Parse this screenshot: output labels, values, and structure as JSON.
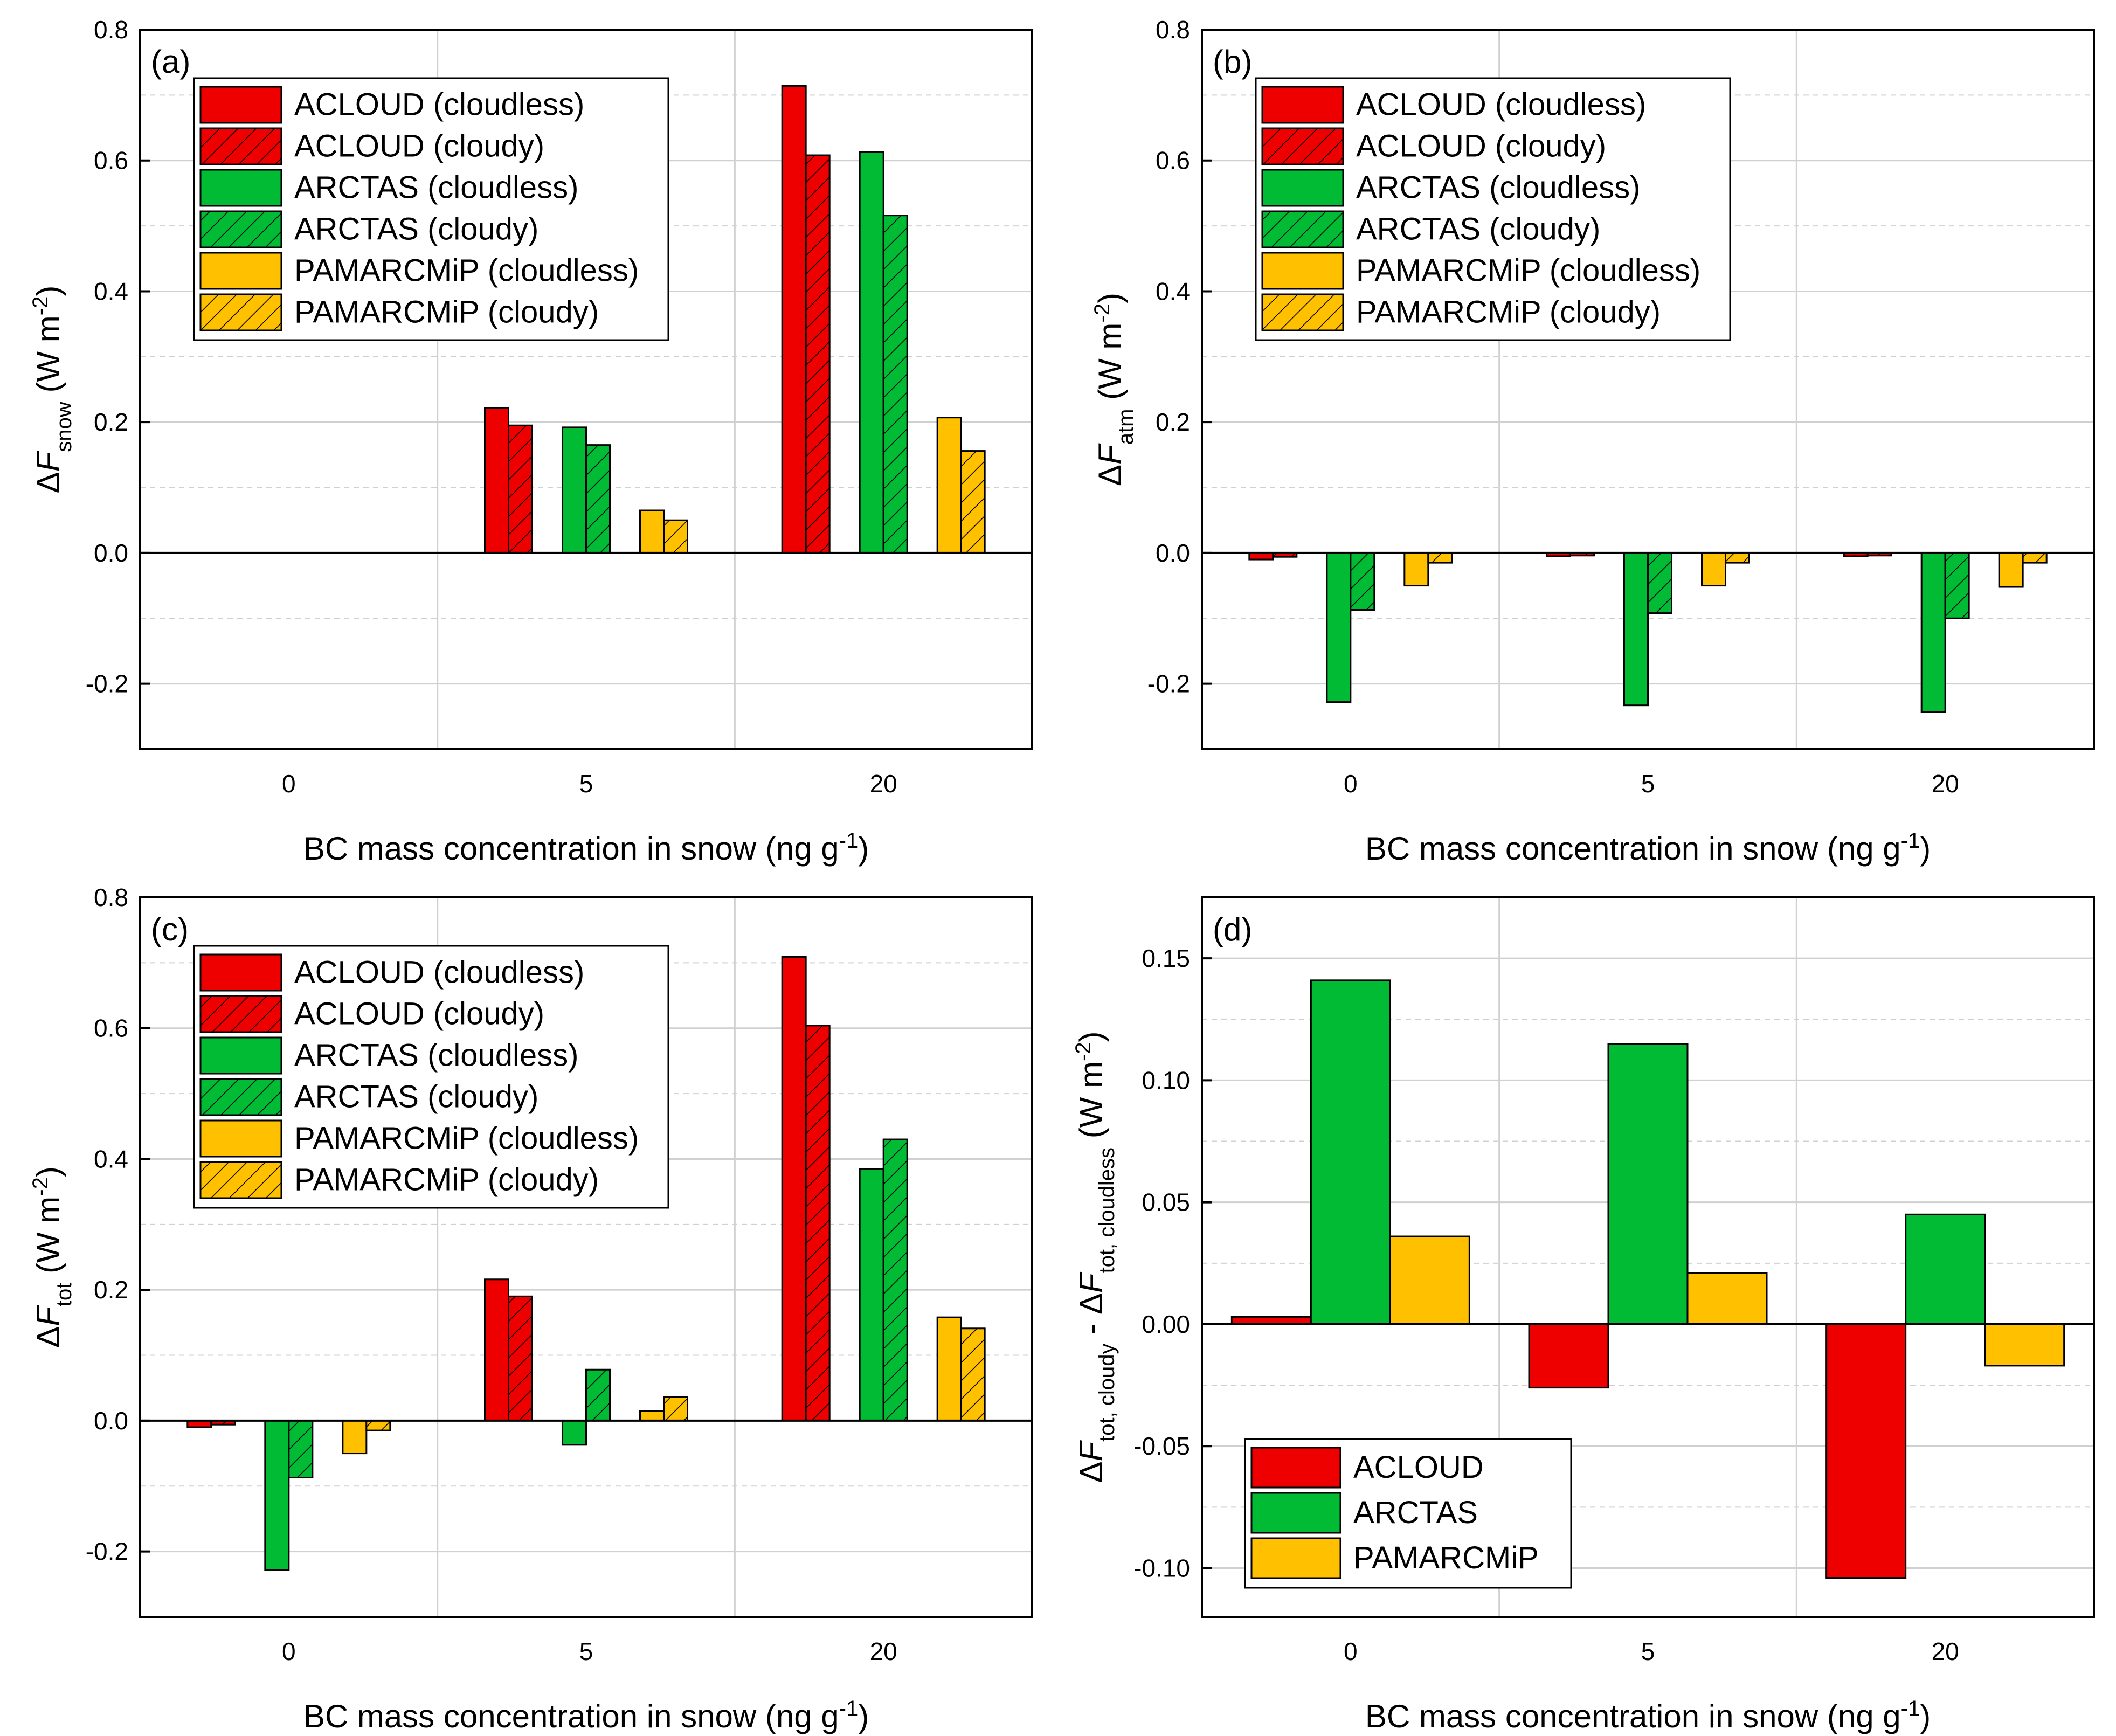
{
  "colors": {
    "ACLOUD": "#ee0000",
    "ARCTAS": "#00bb33",
    "PAMARCMiP": "#ffc000",
    "grid": "#d0d0d0",
    "frame": "#000000"
  },
  "chart_data": [
    {
      "panel": "(a)",
      "type": "bar",
      "categories": [
        "0",
        "5",
        "20"
      ],
      "xlabel": "BC mass concentration in snow (ng g",
      "xlabel_sup": "-1",
      "xlabel_end": ")",
      "ylabel_parts": [
        "ΔF",
        "snow",
        " (W m",
        "-2",
        ")"
      ],
      "ylim": [
        -0.3,
        0.8
      ],
      "yticks": [
        "-0.2",
        "0.0",
        "0.2",
        "0.4",
        "0.6",
        "0.8"
      ],
      "grid": true,
      "legend_position": "top-left",
      "series": [
        {
          "name": "ACLOUD (cloudless)",
          "group": "ACLOUD",
          "hatch": false,
          "values": [
            0,
            0.222,
            0.714
          ]
        },
        {
          "name": "ACLOUD (cloudy)",
          "group": "ACLOUD",
          "hatch": true,
          "values": [
            0,
            0.195,
            0.608
          ]
        },
        {
          "name": "ARCTAS (cloudless)",
          "group": "ARCTAS",
          "hatch": false,
          "values": [
            0,
            0.192,
            0.613
          ]
        },
        {
          "name": "ARCTAS (cloudy)",
          "group": "ARCTAS",
          "hatch": true,
          "values": [
            0,
            0.165,
            0.516
          ]
        },
        {
          "name": "PAMARCMiP (cloudless)",
          "group": "PAMARCMiP",
          "hatch": false,
          "values": [
            0,
            0.065,
            0.207
          ]
        },
        {
          "name": "PAMARCMiP (cloudy)",
          "group": "PAMARCMiP",
          "hatch": true,
          "values": [
            0,
            0.05,
            0.156
          ]
        }
      ]
    },
    {
      "panel": "(b)",
      "type": "bar",
      "categories": [
        "0",
        "5",
        "20"
      ],
      "xlabel": "BC mass concentration in snow (ng g",
      "xlabel_sup": "-1",
      "xlabel_end": ")",
      "ylabel_parts": [
        "ΔF",
        "atm",
        " (W m",
        "-2",
        ")"
      ],
      "ylim": [
        -0.3,
        0.8
      ],
      "yticks": [
        "-0.2",
        "0.0",
        "0.2",
        "0.4",
        "0.6",
        "0.8"
      ],
      "grid": true,
      "legend_position": "top-left",
      "series": [
        {
          "name": "ACLOUD (cloudless)",
          "group": "ACLOUD",
          "hatch": false,
          "values": [
            -0.01,
            -0.005,
            -0.005
          ]
        },
        {
          "name": "ACLOUD (cloudy)",
          "group": "ACLOUD",
          "hatch": true,
          "values": [
            -0.006,
            -0.004,
            -0.004
          ]
        },
        {
          "name": "ARCTAS (cloudless)",
          "group": "ARCTAS",
          "hatch": false,
          "values": [
            -0.228,
            -0.233,
            -0.243
          ]
        },
        {
          "name": "ARCTAS (cloudy)",
          "group": "ARCTAS",
          "hatch": true,
          "values": [
            -0.087,
            -0.092,
            -0.1
          ]
        },
        {
          "name": "PAMARCMiP (cloudless)",
          "group": "PAMARCMiP",
          "hatch": false,
          "values": [
            -0.05,
            -0.05,
            -0.052
          ]
        },
        {
          "name": "PAMARCMiP (cloudy)",
          "group": "PAMARCMiP",
          "hatch": true,
          "values": [
            -0.015,
            -0.015,
            -0.015
          ]
        }
      ]
    },
    {
      "panel": "(c)",
      "type": "bar",
      "categories": [
        "0",
        "5",
        "20"
      ],
      "xlabel": "BC mass concentration in snow (ng g",
      "xlabel_sup": "-1",
      "xlabel_end": ")",
      "ylabel_parts": [
        "ΔF",
        "tot",
        " (W m",
        "-2",
        ")"
      ],
      "ylim": [
        -0.3,
        0.8
      ],
      "yticks": [
        "-0.2",
        "0.0",
        "0.2",
        "0.4",
        "0.6",
        "0.8"
      ],
      "grid": true,
      "legend_position": "top-left",
      "series": [
        {
          "name": "ACLOUD (cloudless)",
          "group": "ACLOUD",
          "hatch": false,
          "values": [
            -0.01,
            0.216,
            0.709
          ]
        },
        {
          "name": "ACLOUD (cloudy)",
          "group": "ACLOUD",
          "hatch": true,
          "values": [
            -0.006,
            0.19,
            0.604
          ]
        },
        {
          "name": "ARCTAS (cloudless)",
          "group": "ARCTAS",
          "hatch": false,
          "values": [
            -0.228,
            -0.037,
            0.385
          ]
        },
        {
          "name": "ARCTAS (cloudy)",
          "group": "ARCTAS",
          "hatch": true,
          "values": [
            -0.087,
            0.078,
            0.43
          ]
        },
        {
          "name": "PAMARCMiP (cloudless)",
          "group": "PAMARCMiP",
          "hatch": false,
          "values": [
            -0.05,
            0.015,
            0.158
          ]
        },
        {
          "name": "PAMARCMiP (cloudy)",
          "group": "PAMARCMiP",
          "hatch": true,
          "values": [
            -0.015,
            0.036,
            0.141
          ]
        }
      ]
    },
    {
      "panel": "(d)",
      "type": "bar",
      "categories": [
        "0",
        "5",
        "20"
      ],
      "xlabel": "BC mass concentration in snow (ng g",
      "xlabel_sup": "-1",
      "xlabel_end": ")",
      "ylabel_parts": [
        "ΔF",
        "tot, cloudy",
        " - ΔF",
        "tot, cloudless",
        " (W m",
        "-2",
        ")"
      ],
      "ylim": [
        -0.12,
        0.175
      ],
      "yticks": [
        "-0.10",
        "-0.05",
        "0.00",
        "0.05",
        "0.10",
        "0.15"
      ],
      "grid": true,
      "legend_position": "bottom-left",
      "series": [
        {
          "name": "ACLOUD",
          "group": "ACLOUD",
          "hatch": false,
          "values": [
            0.003,
            -0.026,
            -0.104
          ]
        },
        {
          "name": "ARCTAS",
          "group": "ARCTAS",
          "hatch": false,
          "values": [
            0.141,
            0.115,
            0.045
          ]
        },
        {
          "name": "PAMARCMiP",
          "group": "PAMARCMiP",
          "hatch": false,
          "values": [
            0.036,
            0.021,
            -0.017
          ]
        }
      ]
    }
  ]
}
